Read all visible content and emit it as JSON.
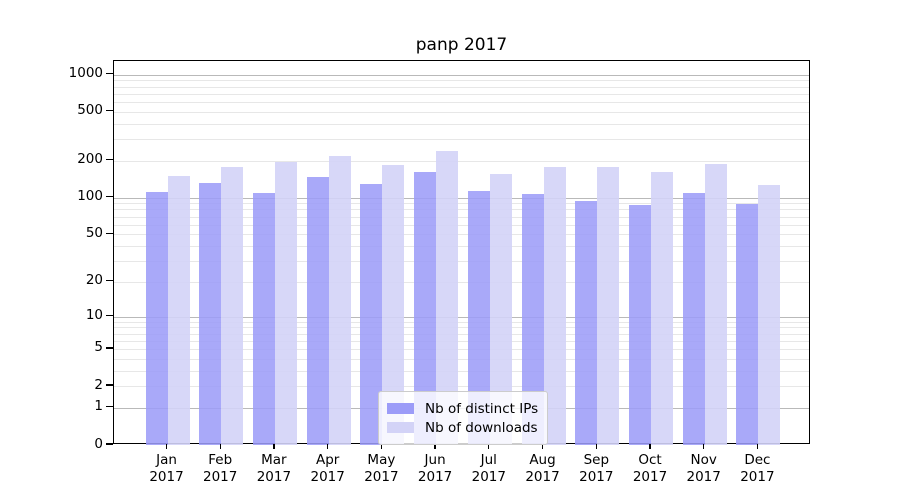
{
  "title": "panp 2017",
  "chart_data": {
    "type": "bar",
    "title": "panp 2017",
    "categories": [
      "Jan 2017",
      "Feb 2017",
      "Mar 2017",
      "Apr 2017",
      "May 2017",
      "Jun 2017",
      "Jul 2017",
      "Aug 2017",
      "Sep 2017",
      "Oct 2017",
      "Nov 2017",
      "Dec 2017"
    ],
    "series": [
      {
        "name": "Nb of distinct IPs",
        "color": "#9c9cf8",
        "values": [
          112,
          132,
          110,
          147,
          130,
          163,
          113,
          107,
          93,
          87,
          110,
          89
        ]
      },
      {
        "name": "Nb of downloads",
        "color": "#d3d3f7",
        "values": [
          149,
          178,
          195,
          218,
          183,
          238,
          157,
          177,
          179,
          163,
          188,
          126
        ]
      }
    ],
    "yscale": "log1p",
    "ylim": [
      0,
      1290
    ],
    "y_tick_values": [
      1000,
      500,
      200,
      100,
      50,
      20,
      10,
      5,
      2,
      1,
      0
    ],
    "y_major_gridlines": [
      1,
      10,
      100,
      1000
    ],
    "y_minor_gridlines": [
      2,
      3,
      4,
      5,
      6,
      7,
      8,
      9,
      20,
      30,
      40,
      50,
      60,
      70,
      80,
      90,
      200,
      300,
      400,
      500,
      600,
      700,
      800,
      900
    ],
    "grid": true,
    "legend": {
      "position": "lower center",
      "items": [
        "Nb of distinct IPs",
        "Nb of downloads"
      ]
    }
  },
  "colors": {
    "ips_bar": "#9c9cf8",
    "downloads_bar": "#d3d3f7",
    "major_grid": "#b9b9b9",
    "minor_grid": "#e7e7e7",
    "spine": "#000000",
    "legend_border": "#cccccc"
  }
}
